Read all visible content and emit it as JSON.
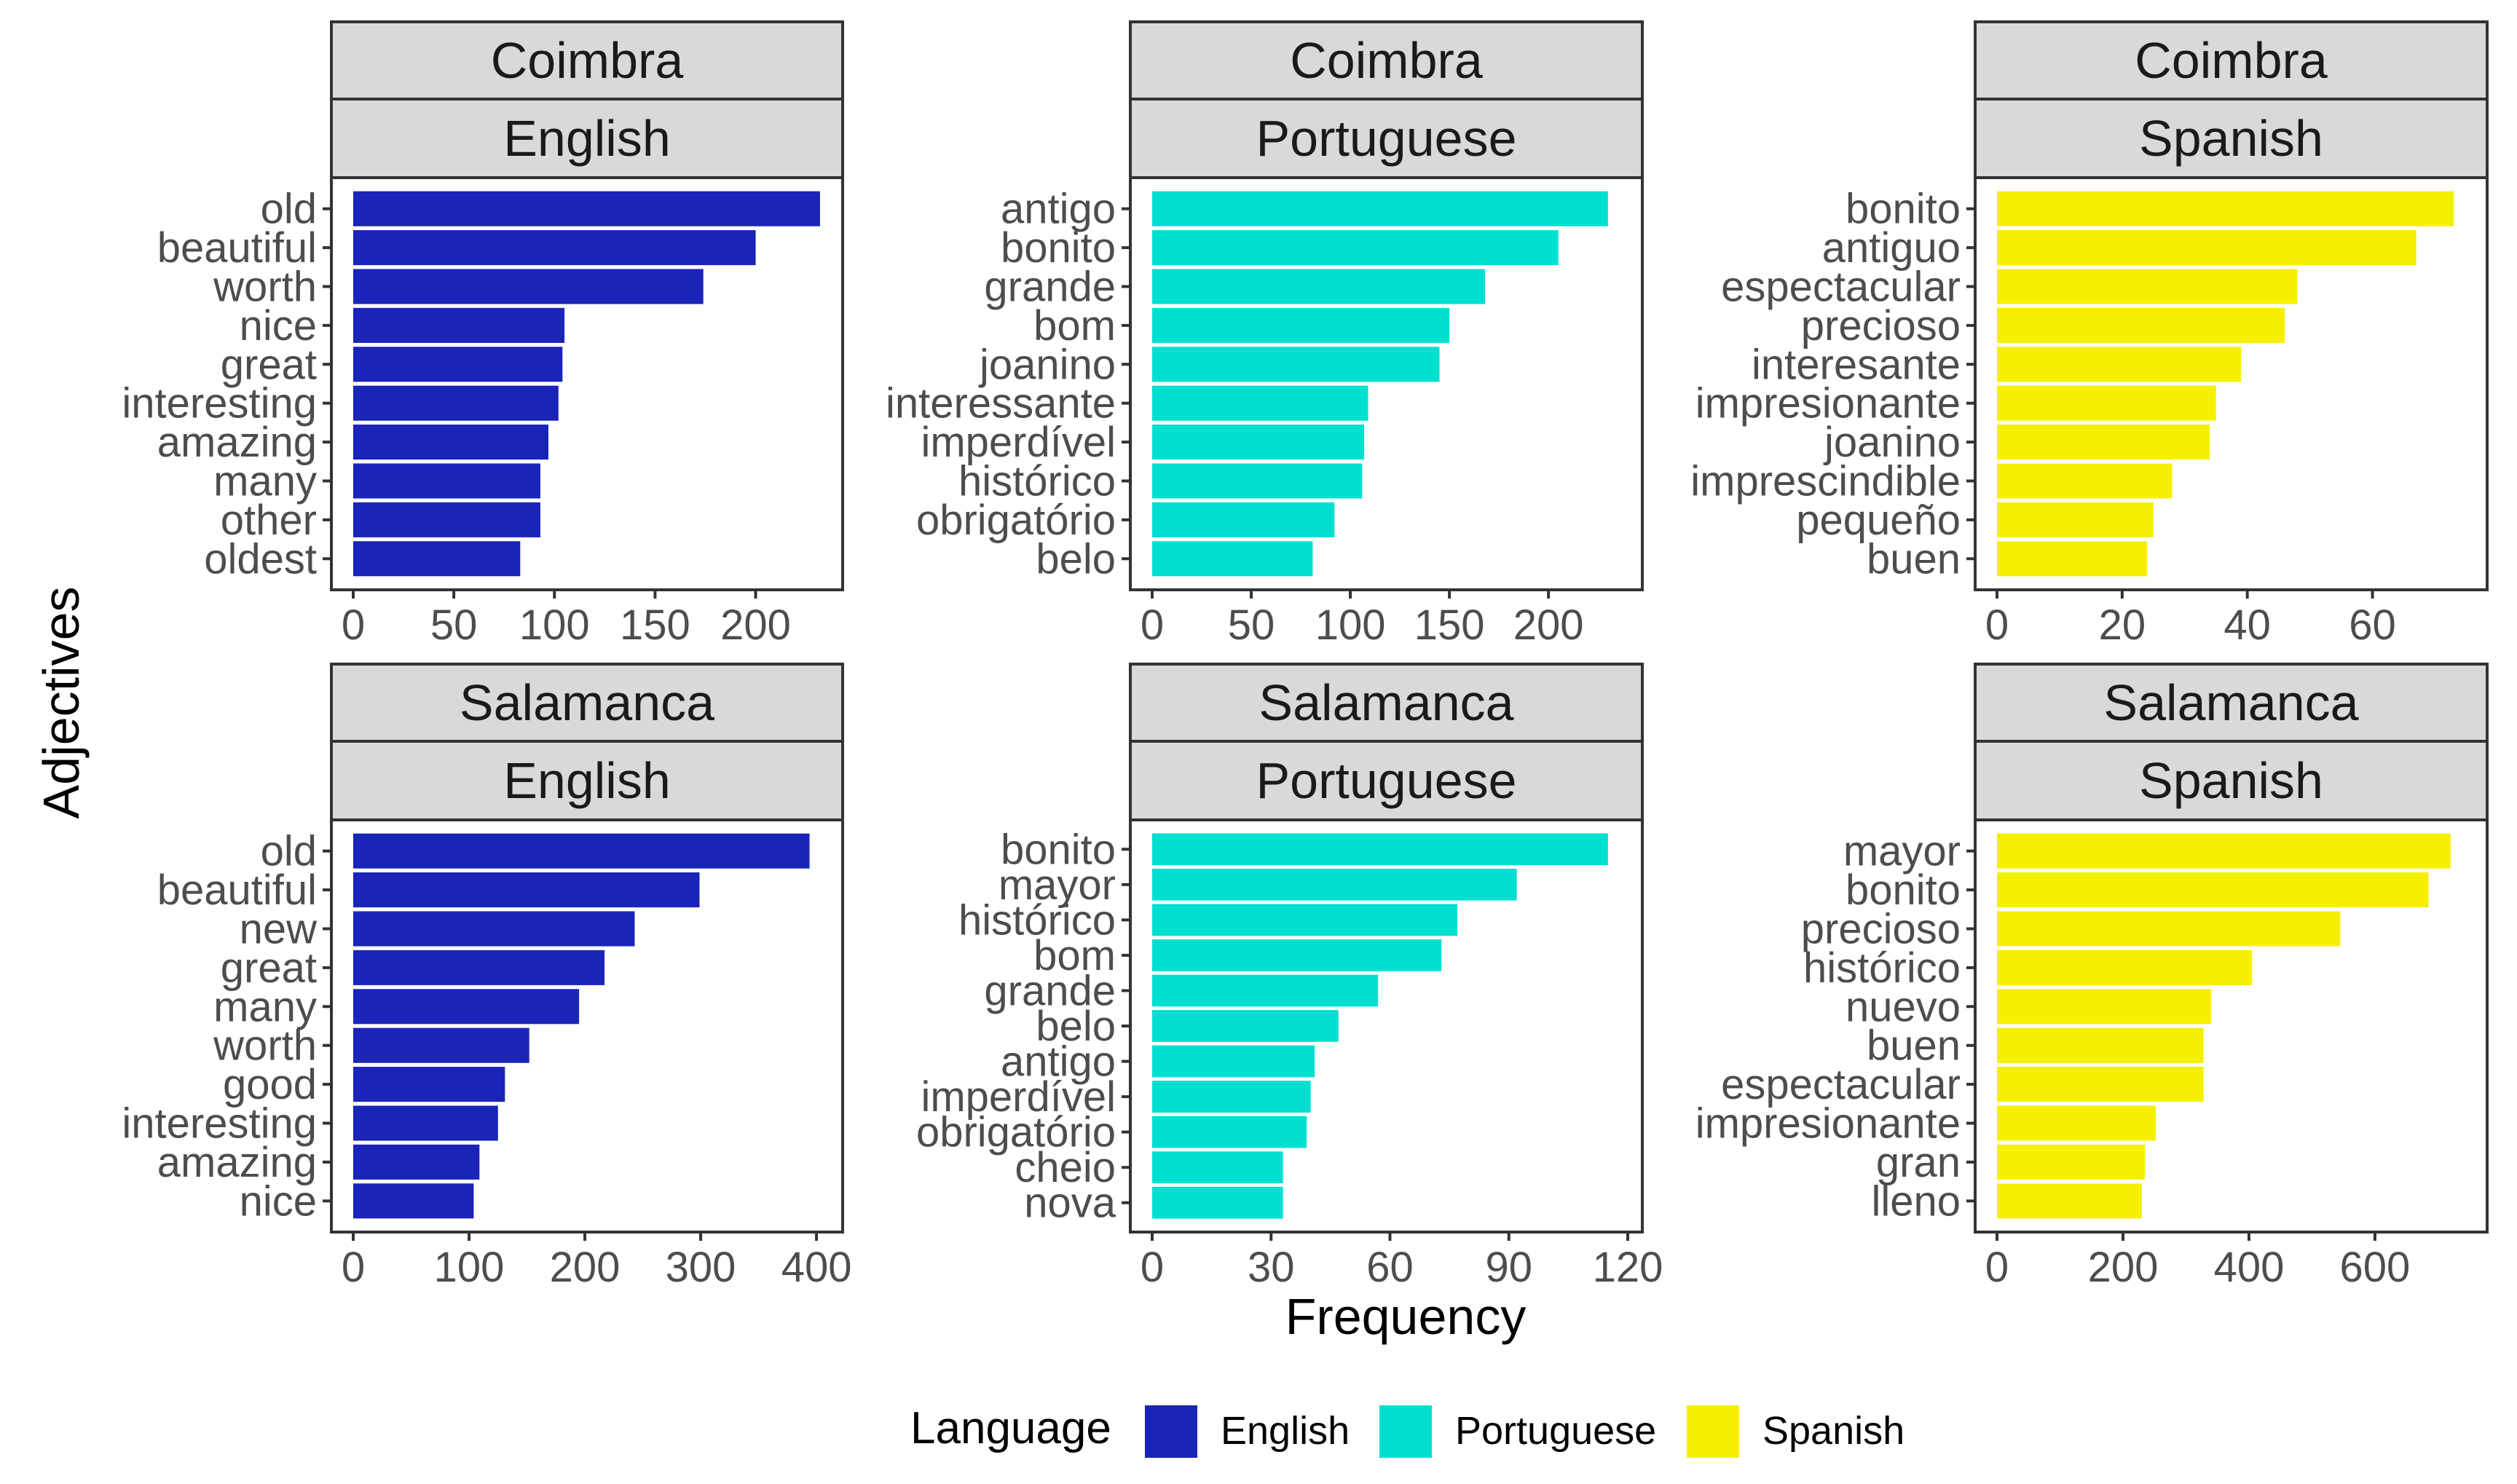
{
  "chart_data": {
    "type": "bar",
    "orientation": "horizontal",
    "xlabel": "Frequency",
    "ylabel": "Adjectives",
    "legend": {
      "title": "Language",
      "position": "bottom",
      "entries": [
        {
          "label": "English",
          "color": "#1a24b8"
        },
        {
          "label": "Portuguese",
          "color": "#00e0d0"
        },
        {
          "label": "Spanish",
          "color": "#f5f000"
        }
      ]
    },
    "panels": [
      {
        "city": "Coimbra",
        "language": "English",
        "color": "#1a24b8",
        "xlim": [
          0,
          236
        ],
        "ticks": [
          0,
          50,
          100,
          150,
          200
        ],
        "categories": [
          "old",
          "beautiful",
          "worth",
          "nice",
          "great",
          "interesting",
          "amazing",
          "many",
          "other",
          "oldest"
        ],
        "values": [
          232,
          200,
          174,
          105,
          104,
          102,
          97,
          93,
          93,
          83
        ]
      },
      {
        "city": "Coimbra",
        "language": "Portuguese",
        "color": "#00e0d0",
        "xlim": [
          0,
          240
        ],
        "ticks": [
          0,
          50,
          100,
          150,
          200
        ],
        "categories": [
          "antigo",
          "bonito",
          "grande",
          "bom",
          "joanino",
          "interessante",
          "imperdível",
          "histórico",
          "obrigatório",
          "belo"
        ],
        "values": [
          230,
          205,
          168,
          150,
          145,
          109,
          107,
          106,
          92,
          81
        ]
      },
      {
        "city": "Coimbra",
        "language": "Spanish",
        "color": "#f5f000",
        "xlim": [
          0,
          76
        ],
        "ticks": [
          0,
          20,
          40,
          60
        ],
        "categories": [
          "bonito",
          "antiguo",
          "espectacular",
          "precioso",
          "interesante",
          "impresionante",
          "joanino",
          "imprescindible",
          "pequeño",
          "buen"
        ],
        "values": [
          73,
          67,
          48,
          46,
          39,
          35,
          34,
          28,
          25,
          24
        ]
      },
      {
        "city": "Salamanca",
        "language": "English",
        "color": "#1a24b8",
        "xlim": [
          0,
          410
        ],
        "ticks": [
          0,
          100,
          200,
          300,
          400
        ],
        "categories": [
          "old",
          "beautiful",
          "new",
          "great",
          "many",
          "worth",
          "good",
          "interesting",
          "amazing",
          "nice"
        ],
        "values": [
          394,
          299,
          243,
          217,
          195,
          152,
          131,
          125,
          109,
          104
        ]
      },
      {
        "city": "Salamanca",
        "language": "Portuguese",
        "color": "#00e0d0",
        "xlim": [
          0,
          120
        ],
        "ticks": [
          0,
          30,
          60,
          90,
          120
        ],
        "categories": [
          "bonito",
          "mayor",
          "histórico",
          "bom",
          "grande",
          "belo",
          "antigo",
          "imperdível",
          "obrigatório",
          "cheio",
          "nova"
        ],
        "values": [
          115,
          92,
          77,
          73,
          57,
          47,
          41,
          40,
          39,
          33,
          33
        ]
      },
      {
        "city": "Salamanca",
        "language": "Spanish",
        "color": "#f5f000",
        "xlim": [
          0,
          755
        ],
        "ticks": [
          0,
          200,
          400,
          600
        ],
        "categories": [
          "mayor",
          "bonito",
          "precioso",
          "histórico",
          "nuevo",
          "buen",
          "espectacular",
          "impresionante",
          "gran",
          "lleno"
        ],
        "values": [
          720,
          685,
          545,
          405,
          340,
          328,
          328,
          252,
          235,
          230
        ]
      }
    ]
  }
}
